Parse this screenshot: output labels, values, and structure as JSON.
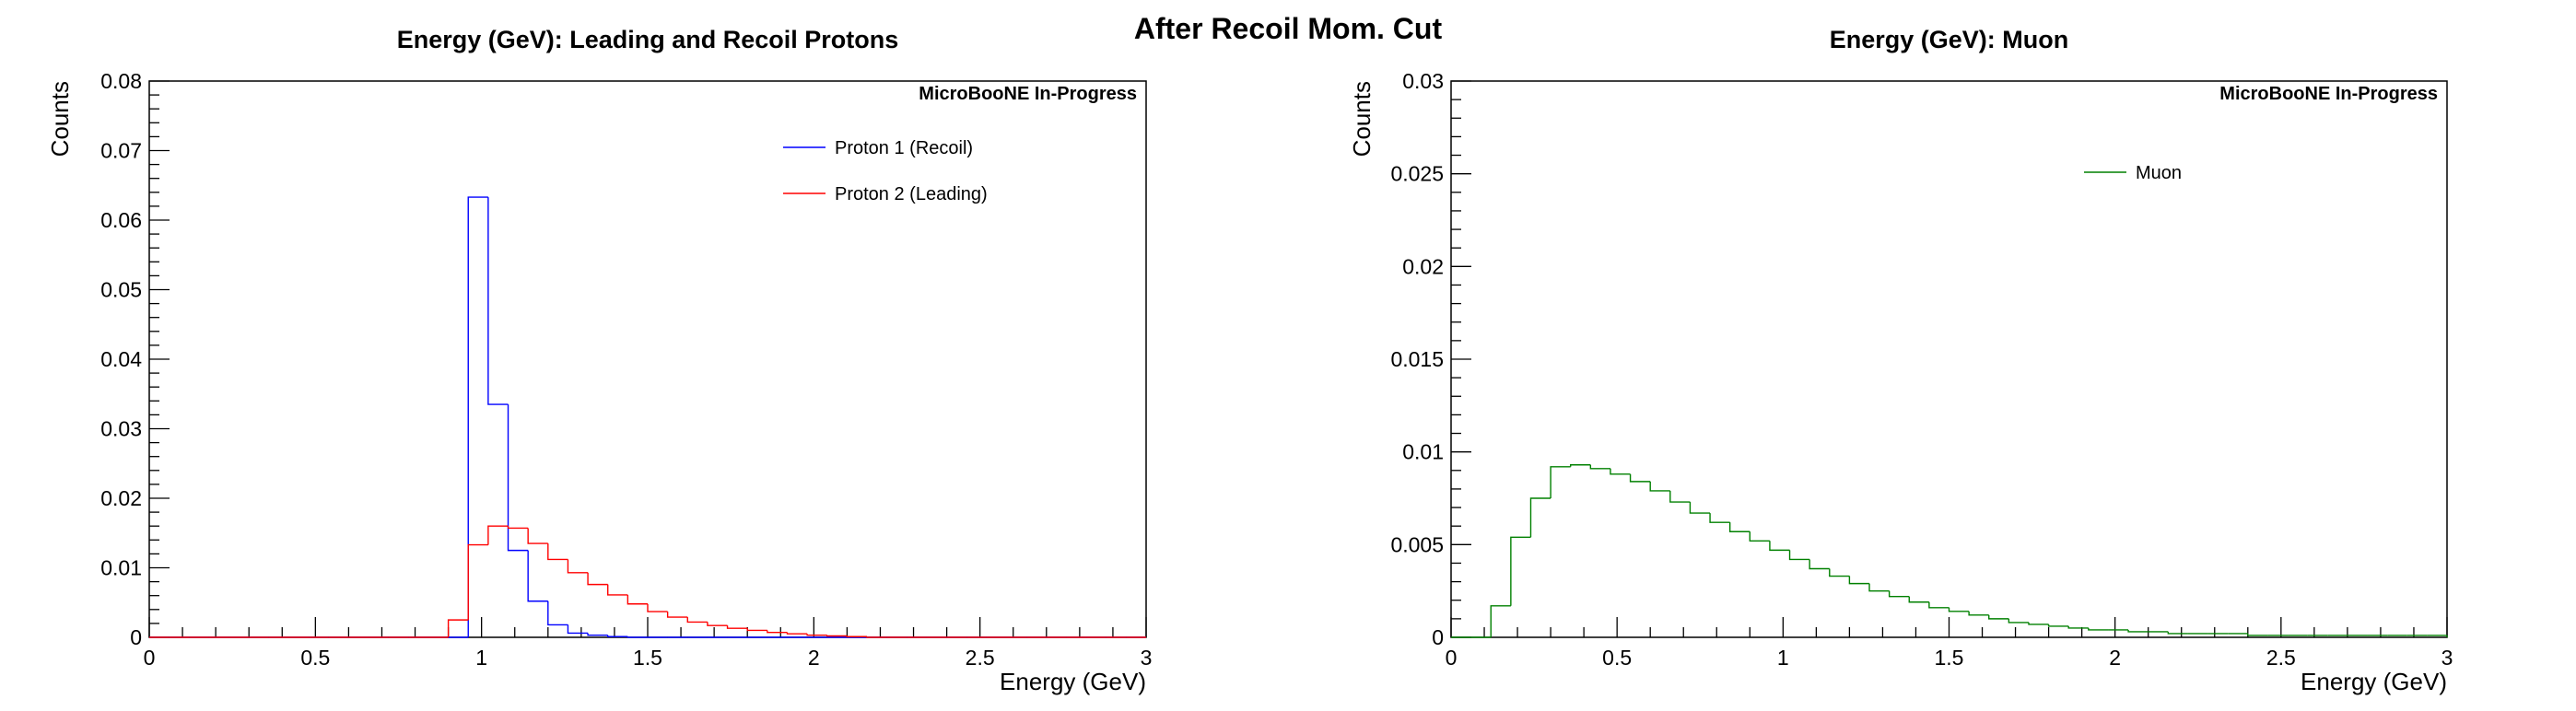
{
  "page_title": "After Recoil Mom. Cut",
  "chart_data": [
    {
      "type": "histogram",
      "title": "Energy (GeV): Leading and Recoil Protons",
      "xlabel": "Energy (GeV)",
      "ylabel": "Counts",
      "annotation": "MicroBooNE In-Progress",
      "xlim": [
        0,
        3
      ],
      "ylim": [
        0,
        0.08
      ],
      "xticks": [
        "0",
        "0.5",
        "1",
        "1.5",
        "2",
        "2.5",
        "3"
      ],
      "yticks": [
        "0",
        "0.01",
        "0.02",
        "0.03",
        "0.04",
        "0.05",
        "0.06",
        "0.07",
        "0.08"
      ],
      "grid": false,
      "legend_position": "top-right",
      "bin_width": 0.06,
      "x_start": 0,
      "series": [
        {
          "name": "Proton 1 (Recoil)",
          "color": "#0000ff",
          "values": [
            0,
            0,
            0,
            0,
            0,
            0,
            0,
            0,
            0,
            0,
            0,
            0,
            0,
            0,
            0,
            0,
            0.0633,
            0.0335,
            0.0125,
            0.0052,
            0.0018,
            0.0006,
            0.0003,
            0.0001,
            0,
            0,
            0,
            0,
            0,
            0,
            0,
            0,
            0,
            0,
            0,
            0,
            0,
            0,
            0,
            0,
            0,
            0,
            0,
            0,
            0,
            0,
            0,
            0,
            0,
            0
          ]
        },
        {
          "name": "Proton 2 (Leading)",
          "color": "#ff0000",
          "values": [
            0,
            0,
            0,
            0,
            0,
            0,
            0,
            0,
            0,
            0,
            0,
            0,
            0,
            0,
            0,
            0.0025,
            0.0133,
            0.016,
            0.0157,
            0.0135,
            0.0112,
            0.0093,
            0.0076,
            0.0061,
            0.0048,
            0.0037,
            0.0029,
            0.0022,
            0.0017,
            0.0013,
            0.001,
            0.0007,
            0.0005,
            0.0003,
            0.0002,
            0.0001,
            0,
            0,
            0,
            0,
            0,
            0,
            0,
            0,
            0,
            0,
            0,
            0,
            0,
            0
          ]
        }
      ]
    },
    {
      "type": "histogram",
      "title": "Energy (GeV): Muon",
      "xlabel": "Energy (GeV)",
      "ylabel": "Counts",
      "annotation": "MicroBooNE In-Progress",
      "xlim": [
        0,
        3
      ],
      "ylim": [
        0,
        0.03
      ],
      "xticks": [
        "0",
        "0.5",
        "1",
        "1.5",
        "2",
        "2.5",
        "3"
      ],
      "yticks": [
        "0",
        "0.005",
        "0.01",
        "0.015",
        "0.02",
        "0.025",
        "0.03"
      ],
      "grid": false,
      "legend_position": "top-right",
      "bin_width": 0.06,
      "x_start": 0,
      "series": [
        {
          "name": "Muon",
          "color": "#008000",
          "values": [
            0,
            0,
            0.0017,
            0.0054,
            0.0075,
            0.0092,
            0.0093,
            0.0091,
            0.0088,
            0.0084,
            0.0079,
            0.0073,
            0.0067,
            0.0062,
            0.0057,
            0.0052,
            0.0047,
            0.0042,
            0.0037,
            0.0033,
            0.0029,
            0.0025,
            0.0022,
            0.0019,
            0.0016,
            0.0014,
            0.0012,
            0.001,
            0.0008,
            0.0007,
            0.0006,
            0.0005,
            0.0004,
            0.0004,
            0.0003,
            0.0003,
            0.0002,
            0.0002,
            0.0002,
            0.0002,
            0.0001,
            0.0001,
            0.0001,
            0.0001,
            0.0001,
            0.0001,
            0.0001,
            0.0001,
            0.0001,
            0.0001
          ]
        }
      ]
    }
  ]
}
